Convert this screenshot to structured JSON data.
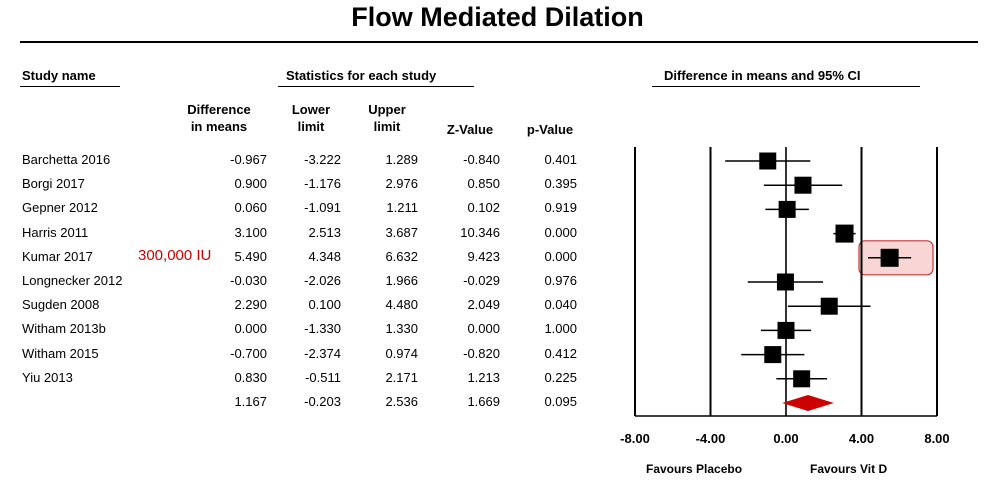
{
  "colors": {
    "marker": "#000000",
    "summary_diamond": "#cc0000",
    "highlight_fill": "#f8d6d6",
    "highlight_stroke": "#cc3333",
    "annotation": "#cc0000"
  },
  "headers": {
    "study_group": "Study name",
    "stats_group": "Statistics for each study",
    "ci_group": "Difference in means and 95% CI",
    "study_col": "",
    "diff_l1": "Difference",
    "diff_l2": "in means",
    "lower_l1": "Lower",
    "lower_l2": "limit",
    "upper_l1": "Upper",
    "upper_l2": "limit",
    "z": "Z-Value",
    "p": "p-Value"
  },
  "annotation": {
    "text": "300,000 IU"
  },
  "favours": {
    "left": "Favours Placebo",
    "right": "Favours Vit D"
  },
  "chart_data": {
    "type": "forest",
    "title": "Flow Mediated Dilation",
    "xlim": [
      -8,
      8
    ],
    "ticks": [
      -8,
      -4,
      0,
      4,
      8
    ],
    "tick_labels": [
      "-8.00",
      "-4.00",
      "0.00",
      "4.00",
      "8.00"
    ],
    "highlighted_study": "Kumar 2017",
    "studies": [
      {
        "name": "Barchetta 2016",
        "diff": -0.967,
        "lower": -3.222,
        "upper": 1.289,
        "z": -0.84,
        "p": 0.401,
        "diff_s": "-0.967",
        "lower_s": "-3.222",
        "upper_s": "1.289",
        "z_s": "-0.840",
        "p_s": "0.401"
      },
      {
        "name": "Borgi 2017",
        "diff": 0.9,
        "lower": -1.176,
        "upper": 2.976,
        "z": 0.85,
        "p": 0.395,
        "diff_s": "0.900",
        "lower_s": "-1.176",
        "upper_s": "2.976",
        "z_s": "0.850",
        "p_s": "0.395"
      },
      {
        "name": "Gepner 2012",
        "diff": 0.06,
        "lower": -1.091,
        "upper": 1.211,
        "z": 0.102,
        "p": 0.919,
        "diff_s": "0.060",
        "lower_s": "-1.091",
        "upper_s": "1.211",
        "z_s": "0.102",
        "p_s": "0.919"
      },
      {
        "name": "Harris 2011",
        "diff": 3.1,
        "lower": 2.513,
        "upper": 3.687,
        "z": 10.346,
        "p": 0.0,
        "diff_s": "3.100",
        "lower_s": "2.513",
        "upper_s": "3.687",
        "z_s": "10.346",
        "p_s": "0.000"
      },
      {
        "name": "Kumar 2017",
        "diff": 5.49,
        "lower": 4.348,
        "upper": 6.632,
        "z": 9.423,
        "p": 0.0,
        "diff_s": "5.490",
        "lower_s": "4.348",
        "upper_s": "6.632",
        "z_s": "9.423",
        "p_s": "0.000"
      },
      {
        "name": "Longnecker 2012",
        "diff": -0.03,
        "lower": -2.026,
        "upper": 1.966,
        "z": -0.029,
        "p": 0.976,
        "diff_s": "-0.030",
        "lower_s": "-2.026",
        "upper_s": "1.966",
        "z_s": "-0.029",
        "p_s": "0.976"
      },
      {
        "name": "Sugden 2008",
        "diff": 2.29,
        "lower": 0.1,
        "upper": 4.48,
        "z": 2.049,
        "p": 0.04,
        "diff_s": "2.290",
        "lower_s": "0.100",
        "upper_s": "4.480",
        "z_s": "2.049",
        "p_s": "0.040"
      },
      {
        "name": "Witham 2013b",
        "diff": 0.0,
        "lower": -1.33,
        "upper": 1.33,
        "z": 0.0,
        "p": 1.0,
        "diff_s": "0.000",
        "lower_s": "-1.330",
        "upper_s": "1.330",
        "z_s": "0.000",
        "p_s": "1.000"
      },
      {
        "name": "Witham 2015",
        "diff": -0.7,
        "lower": -2.374,
        "upper": 0.974,
        "z": -0.82,
        "p": 0.412,
        "diff_s": "-0.700",
        "lower_s": "-2.374",
        "upper_s": "0.974",
        "z_s": "-0.820",
        "p_s": "0.412"
      },
      {
        "name": "Yiu 2013",
        "diff": 0.83,
        "lower": -0.511,
        "upper": 2.171,
        "z": 1.213,
        "p": 0.225,
        "diff_s": "0.830",
        "lower_s": "-0.511",
        "upper_s": "2.171",
        "z_s": "1.213",
        "p_s": "0.225"
      }
    ],
    "summary": {
      "name": "",
      "diff": 1.167,
      "lower": -0.203,
      "upper": 2.536,
      "z": 1.669,
      "p": 0.095,
      "diff_s": "1.167",
      "lower_s": "-0.203",
      "upper_s": "2.536",
      "z_s": "1.669",
      "p_s": "0.095"
    }
  }
}
